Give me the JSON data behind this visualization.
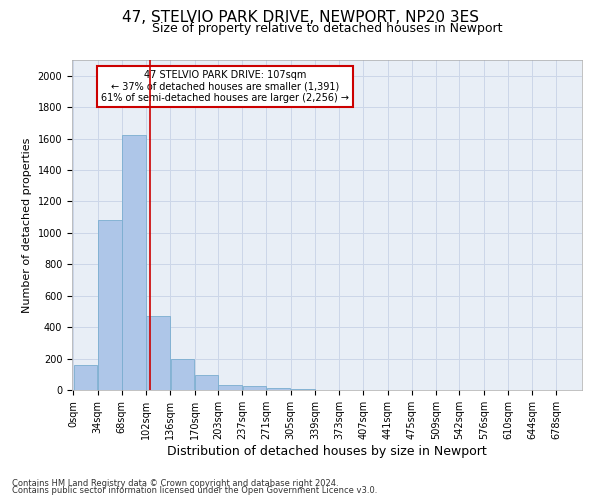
{
  "title1": "47, STELVIO PARK DRIVE, NEWPORT, NP20 3ES",
  "title2": "Size of property relative to detached houses in Newport",
  "xlabel": "Distribution of detached houses by size in Newport",
  "ylabel": "Number of detached properties",
  "footnote1": "Contains HM Land Registry data © Crown copyright and database right 2024.",
  "footnote2": "Contains public sector information licensed under the Open Government Licence v3.0.",
  "annotation_line1": "47 STELVIO PARK DRIVE: 107sqm",
  "annotation_line2": "← 37% of detached houses are smaller (1,391)",
  "annotation_line3": "61% of semi-detached houses are larger (2,256) →",
  "bar_color": "#aec6e8",
  "bar_edge_color": "#7aadcf",
  "redline_x": 107,
  "categories": [
    "0sqm",
    "34sqm",
    "68sqm",
    "102sqm",
    "136sqm",
    "170sqm",
    "203sqm",
    "237sqm",
    "271sqm",
    "305sqm",
    "339sqm",
    "373sqm",
    "407sqm",
    "441sqm",
    "475sqm",
    "509sqm",
    "542sqm",
    "576sqm",
    "610sqm",
    "644sqm",
    "678sqm"
  ],
  "bin_edges": [
    0,
    34,
    68,
    102,
    136,
    170,
    203,
    237,
    271,
    305,
    339,
    373,
    407,
    441,
    475,
    509,
    542,
    576,
    610,
    644,
    678
  ],
  "bar_heights": [
    160,
    1080,
    1620,
    470,
    200,
    95,
    35,
    25,
    10,
    5,
    3,
    2,
    1,
    0,
    0,
    0,
    0,
    0,
    0,
    0
  ],
  "ylim": [
    0,
    2100
  ],
  "yticks": [
    0,
    200,
    400,
    600,
    800,
    1000,
    1200,
    1400,
    1600,
    1800,
    2000
  ],
  "grid_color": "#ccd6e8",
  "background_color": "#e8eef6",
  "title1_fontsize": 11,
  "title2_fontsize": 9,
  "xlabel_fontsize": 9,
  "ylabel_fontsize": 8,
  "tick_fontsize": 7,
  "annotation_fontsize": 7,
  "annotation_box_color": "#ffffff",
  "annotation_box_edge": "#cc0000",
  "redline_color": "#cc0000",
  "footnote_fontsize": 6
}
